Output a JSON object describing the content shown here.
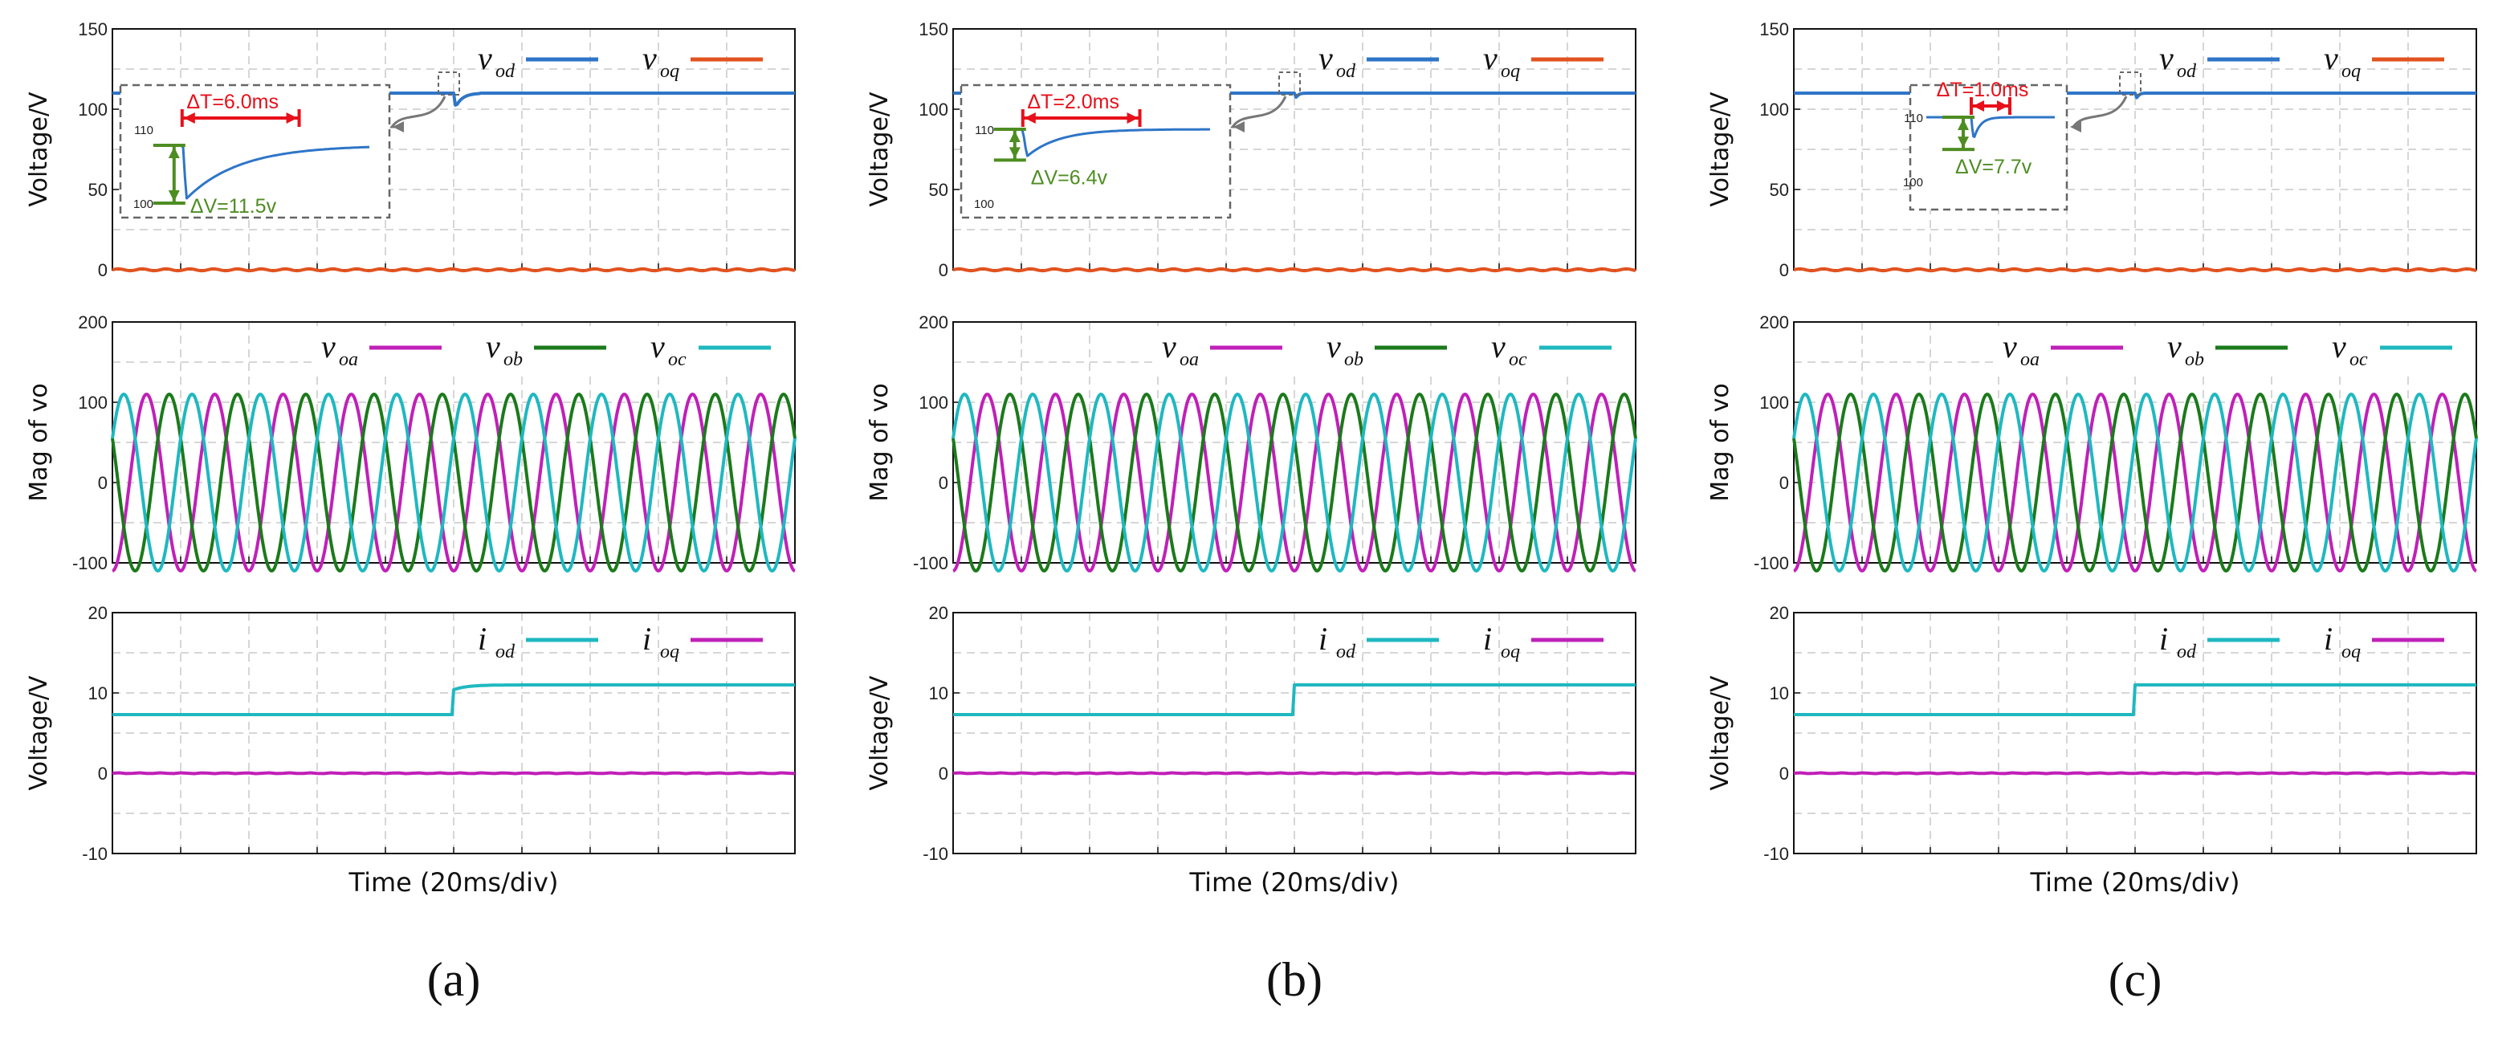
{
  "figure": {
    "xlabel": "Time  (20ms/div)",
    "colors": {
      "vod": "#2e75c8",
      "voq": "#e2531f",
      "voa": "#c020b8",
      "vob": "#1b7a1b",
      "voc": "#1fb8c0",
      "iod": "#1fb8c0",
      "ioq": "#c020b8",
      "grid": "#c8c8c8",
      "inset_box": "#666666",
      "dT": "#e8101a",
      "dV": "#4e8d22"
    }
  },
  "chart_data": [
    {
      "panel": "a",
      "caption": "(a)",
      "caption_letter": "a",
      "plots": [
        {
          "type": "line",
          "ylabel": "Voltage/V",
          "ylim": [
            0,
            150
          ],
          "yticks": [
            "150",
            "100",
            "50",
            "0"
          ],
          "legend": [
            {
              "sym": "v",
              "sub": "od"
            },
            {
              "sym": "v",
              "sub": "oq"
            }
          ],
          "series": [
            {
              "name": "vod",
              "value": 110,
              "dip": 11.5,
              "recovery_ms": 6.0
            },
            {
              "name": "voq",
              "value": 0
            }
          ],
          "inset": {
            "dT_label": "ΔT=6.0ms",
            "dV_label": "ΔV=11.5v",
            "ytick_top": "110",
            "ytick_bottom": "100",
            "dip_depth": 11.5,
            "recovery_ms": 6.0
          }
        },
        {
          "type": "line",
          "ylabel": "Mag of vo",
          "ylim": [
            -100,
            200
          ],
          "yticks": [
            "200",
            "100",
            "0",
            "-100"
          ],
          "legend": [
            {
              "sym": "v",
              "sub": "oa"
            },
            {
              "sym": "v",
              "sub": "ob"
            },
            {
              "sym": "v",
              "sub": "oc"
            }
          ],
          "series": [
            {
              "name": "voa",
              "amplitude": 110,
              "frequency_hz": 50,
              "phase_deg": -90
            },
            {
              "name": "vob",
              "amplitude": 110,
              "frequency_hz": 50,
              "phase_deg": 150
            },
            {
              "name": "voc",
              "amplitude": 110,
              "frequency_hz": 50,
              "phase_deg": 30
            }
          ]
        },
        {
          "type": "line",
          "ylabel": "Voltage/V",
          "ylim": [
            -10,
            20
          ],
          "yticks": [
            "20",
            "10",
            "0",
            "-10"
          ],
          "legend": [
            {
              "sym": "i",
              "sub": "od"
            },
            {
              "sym": "i",
              "sub": "oq"
            }
          ],
          "series": [
            {
              "name": "iod",
              "before": 7.3,
              "after": 11,
              "step_time_ms": 100
            },
            {
              "name": "ioq",
              "value": 0
            }
          ]
        }
      ]
    },
    {
      "panel": "b",
      "caption": "(b)",
      "caption_letter": "b",
      "plots": [
        {
          "type": "line",
          "ylabel": "Voltage/V",
          "ylim": [
            0,
            150
          ],
          "yticks": [
            "150",
            "100",
            "50",
            "0"
          ],
          "legend": [
            {
              "sym": "v",
              "sub": "od"
            },
            {
              "sym": "v",
              "sub": "oq"
            }
          ],
          "series": [
            {
              "name": "vod",
              "value": 110,
              "dip": 6.4,
              "recovery_ms": 2.0
            },
            {
              "name": "voq",
              "value": 0
            }
          ],
          "inset": {
            "dT_label": "ΔT=2.0ms",
            "dV_label": "ΔV=6.4v",
            "ytick_top": "110",
            "ytick_bottom": "100",
            "dip_depth": 6.4,
            "recovery_ms": 2.0
          }
        },
        {
          "type": "line",
          "ylabel": "Mag of vo",
          "ylim": [
            -100,
            200
          ],
          "yticks": [
            "200",
            "100",
            "0",
            "-100"
          ],
          "legend": [
            {
              "sym": "v",
              "sub": "oa"
            },
            {
              "sym": "v",
              "sub": "ob"
            },
            {
              "sym": "v",
              "sub": "oc"
            }
          ],
          "series": [
            {
              "name": "voa",
              "amplitude": 110,
              "frequency_hz": 50,
              "phase_deg": -90
            },
            {
              "name": "vob",
              "amplitude": 110,
              "frequency_hz": 50,
              "phase_deg": 150
            },
            {
              "name": "voc",
              "amplitude": 110,
              "frequency_hz": 50,
              "phase_deg": 30
            }
          ]
        },
        {
          "type": "line",
          "ylabel": "Voltage/V",
          "ylim": [
            -10,
            20
          ],
          "yticks": [
            "20",
            "10",
            "0",
            "-10"
          ],
          "legend": [
            {
              "sym": "i",
              "sub": "od"
            },
            {
              "sym": "i",
              "sub": "oq"
            }
          ],
          "series": [
            {
              "name": "iod",
              "before": 7.3,
              "after": 11,
              "step_time_ms": 100
            },
            {
              "name": "ioq",
              "value": 0
            }
          ]
        }
      ]
    },
    {
      "panel": "c",
      "caption": "(c)",
      "caption_letter": "c",
      "plots": [
        {
          "type": "line",
          "ylabel": "Voltage/V",
          "ylim": [
            0,
            150
          ],
          "yticks": [
            "150",
            "100",
            "50",
            "0"
          ],
          "legend": [
            {
              "sym": "v",
              "sub": "od"
            },
            {
              "sym": "v",
              "sub": "oq"
            }
          ],
          "series": [
            {
              "name": "vod",
              "value": 110,
              "dip": 7.7,
              "recovery_ms": 1.0
            },
            {
              "name": "voq",
              "value": 0
            }
          ],
          "inset": {
            "dT_label": "ΔT=1.0ms",
            "dV_label": "ΔV=7.7v",
            "ytick_top": "110",
            "ytick_bottom": "100",
            "dip_depth": 7.7,
            "recovery_ms": 1.0
          }
        },
        {
          "type": "line",
          "ylabel": "Mag of vo",
          "ylim": [
            -100,
            200
          ],
          "yticks": [
            "200",
            "100",
            "0",
            "-100"
          ],
          "legend": [
            {
              "sym": "v",
              "sub": "oa"
            },
            {
              "sym": "v",
              "sub": "ob"
            },
            {
              "sym": "v",
              "sub": "oc"
            }
          ],
          "series": [
            {
              "name": "voa",
              "amplitude": 110,
              "frequency_hz": 50,
              "phase_deg": -90
            },
            {
              "name": "vob",
              "amplitude": 110,
              "frequency_hz": 50,
              "phase_deg": 150
            },
            {
              "name": "voc",
              "amplitude": 110,
              "frequency_hz": 50,
              "phase_deg": 30
            }
          ]
        },
        {
          "type": "line",
          "ylabel": "Voltage/V",
          "ylim": [
            -10,
            20
          ],
          "yticks": [
            "20",
            "10",
            "0",
            "-10"
          ],
          "legend": [
            {
              "sym": "i",
              "sub": "od"
            },
            {
              "sym": "i",
              "sub": "oq"
            }
          ],
          "series": [
            {
              "name": "iod",
              "before": 7.3,
              "after": 11,
              "step_time_ms": 100
            },
            {
              "name": "ioq",
              "value": 0
            }
          ]
        }
      ]
    }
  ]
}
